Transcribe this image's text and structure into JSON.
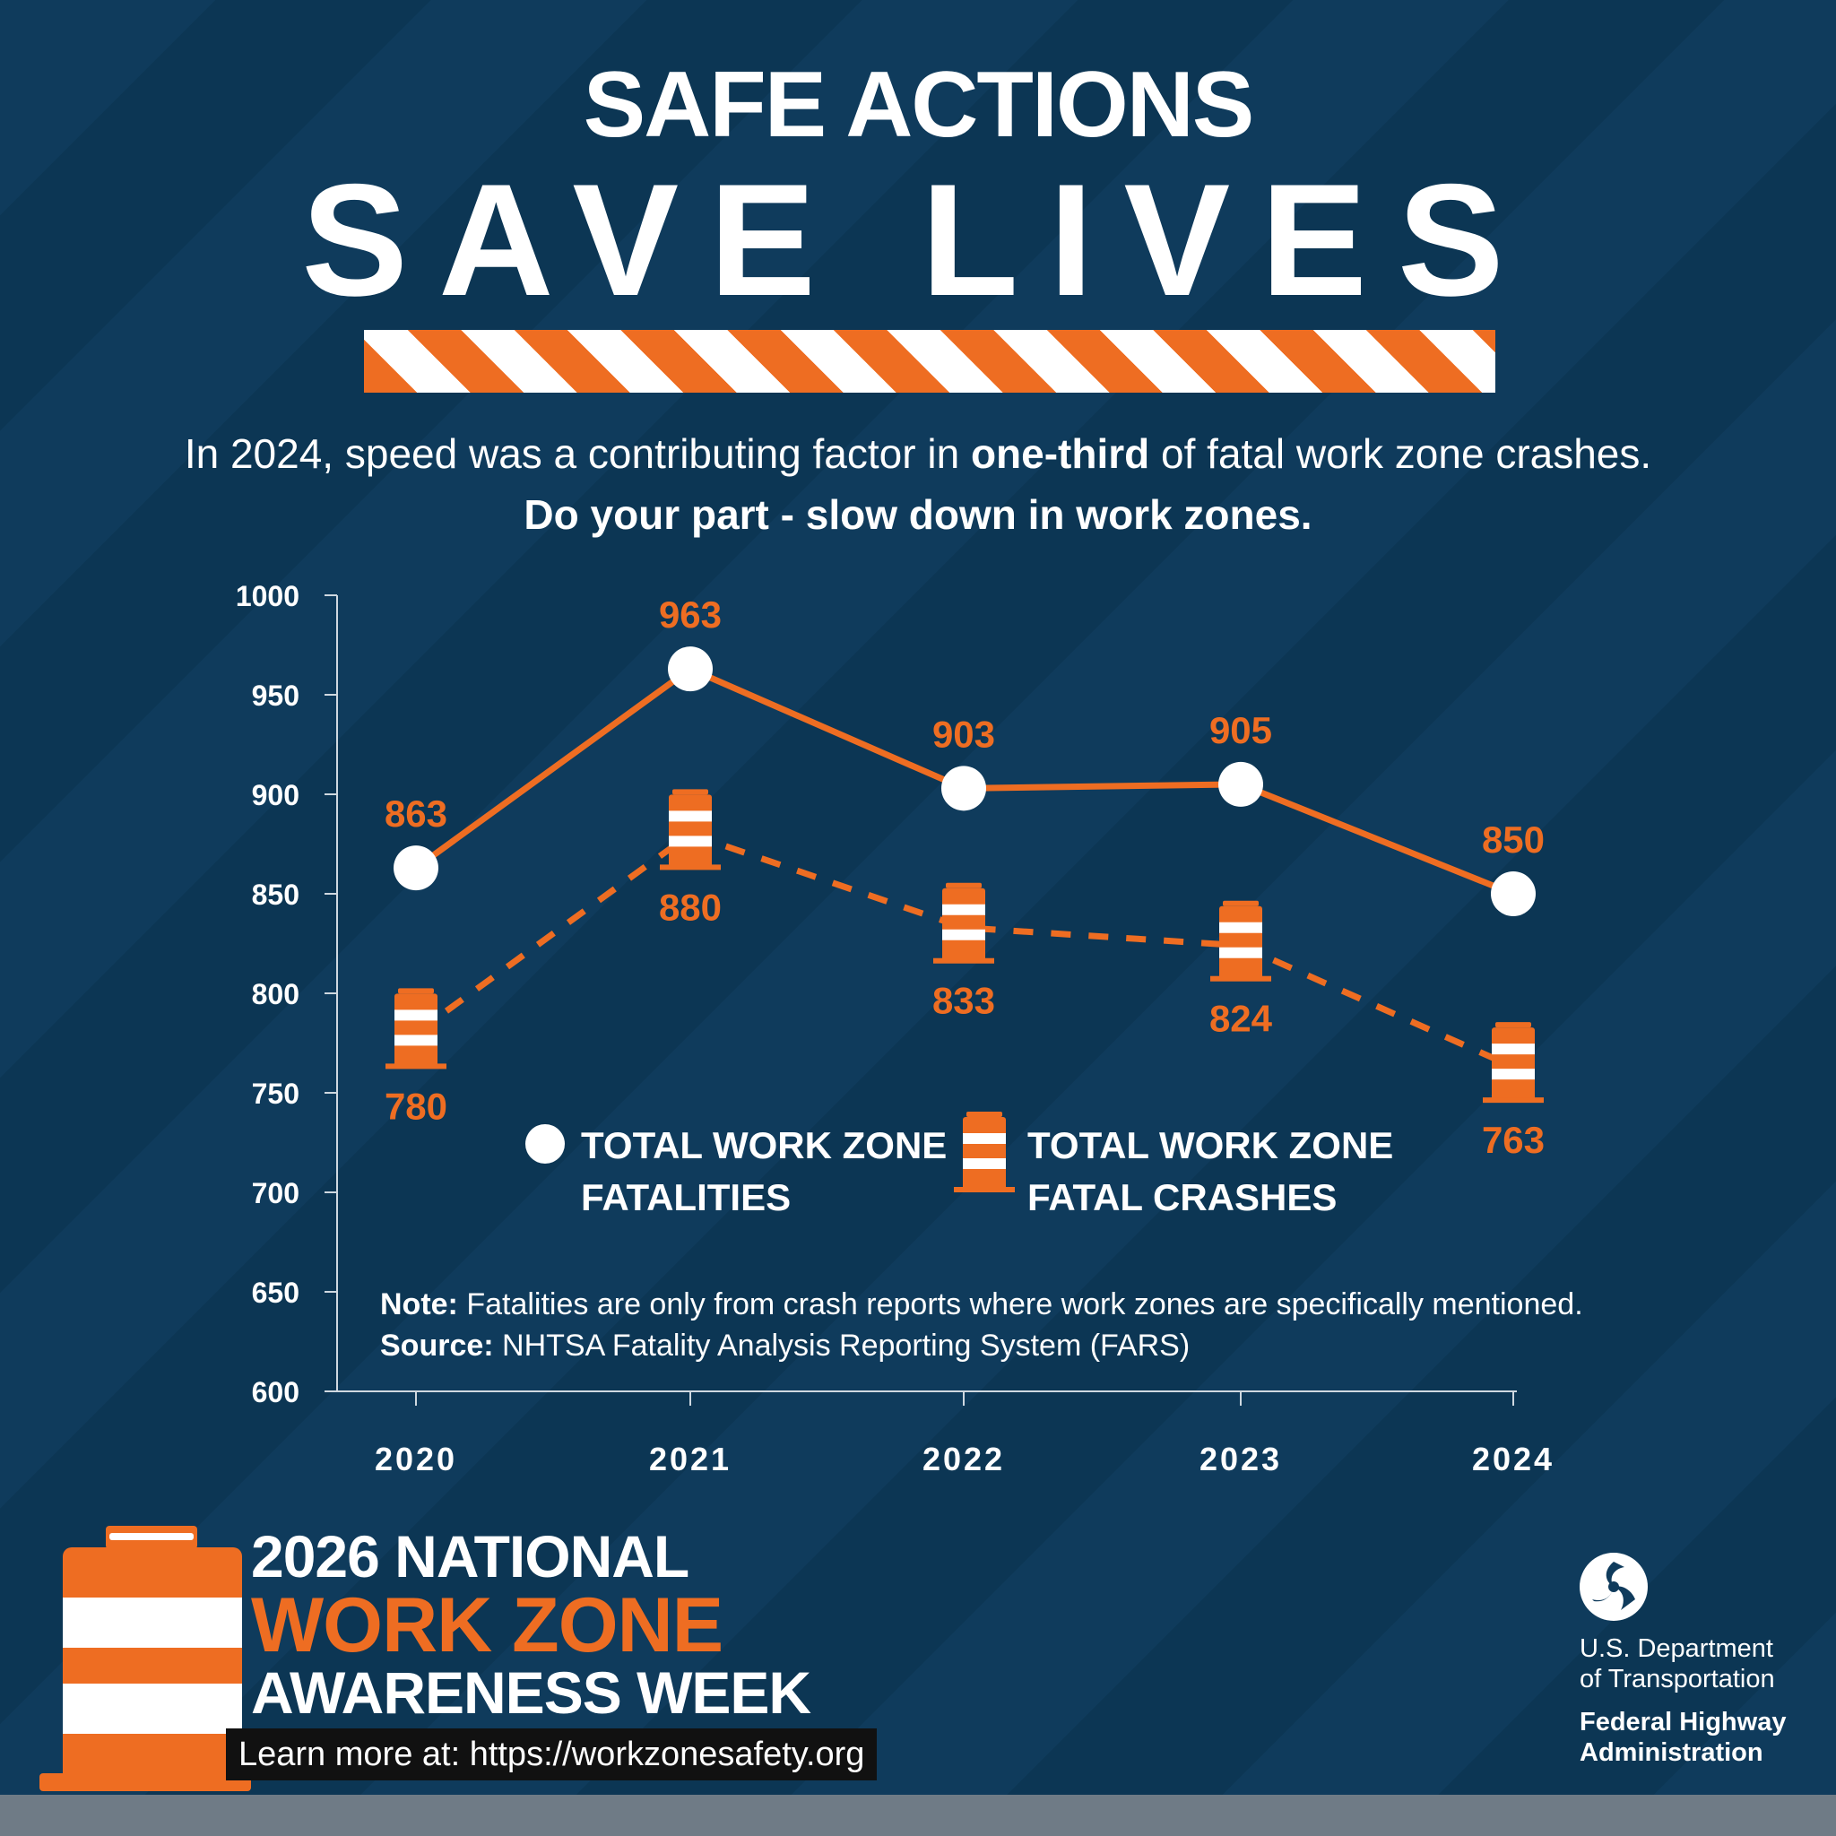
{
  "header": {
    "title_small": "SAFE ACTIONS",
    "title_big": "SAVE LIVES",
    "subtitle_before": "In 2024, speed was a contributing factor in ",
    "subtitle_bold": "one-third",
    "subtitle_after": " of fatal work zone crashes.",
    "subtitle_line2": "Do your part - slow down in work zones."
  },
  "colors": {
    "background": "#0f3b5c",
    "accent": "#ee6d22",
    "text": "#ffffff"
  },
  "chart_data": {
    "type": "line",
    "categories": [
      "2020",
      "2021",
      "2022",
      "2023",
      "2024"
    ],
    "series": [
      {
        "name": "TOTAL WORK ZONE FATALITIES",
        "values": [
          863,
          963,
          903,
          905,
          850
        ],
        "style": "solid",
        "marker": "white-circle"
      },
      {
        "name": "TOTAL WORK ZONE FATAL CRASHES",
        "values": [
          780,
          880,
          833,
          824,
          763
        ],
        "style": "dashed",
        "marker": "barrel-icon"
      }
    ],
    "yticks": [
      "1000",
      "950",
      "900",
      "850",
      "800",
      "750",
      "700",
      "650",
      "600"
    ],
    "ylim": [
      600,
      1000
    ],
    "legend": [
      {
        "line1": "TOTAL WORK ZONE",
        "line2": "FATALITIES"
      },
      {
        "line1": "TOTAL WORK ZONE",
        "line2": "FATAL CRASHES"
      }
    ],
    "legend_position": "center",
    "grid": false
  },
  "note": {
    "note_label": "Note:",
    "note_text": " Fatalities are only from crash reports where work zones are specifically mentioned.",
    "source_label": "Source:",
    "source_text": " NHTSA Fatality Analysis Reporting System (FARS)"
  },
  "footer": {
    "campaign_line1": "2026 NATIONAL",
    "campaign_line2": "WORK ZONE",
    "campaign_line3": "AWARENESS WEEK",
    "learn_more": "Learn more at: https://workzonesafety.org",
    "dot_line1": "U.S. Department",
    "dot_line2": "of Transportation",
    "fhwa_line1": "Federal Highway",
    "fhwa_line2": "Administration"
  }
}
